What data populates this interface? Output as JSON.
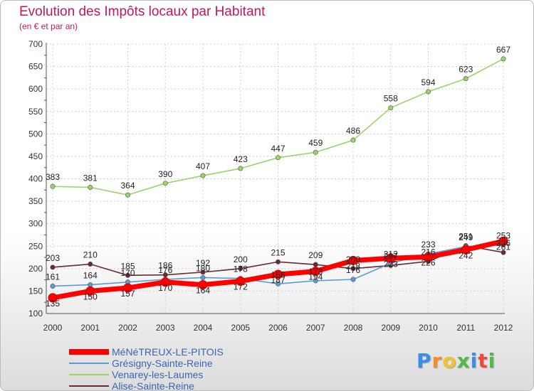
{
  "chart_data": {
    "type": "line",
    "title": "Evolution des Impôts locaux par Habitant",
    "subtitle": "(en € et par an)",
    "x": [
      "2000",
      "2001",
      "2002",
      "2003",
      "2004",
      "2005",
      "2006",
      "2007",
      "2008",
      "2009",
      "2010",
      "2011",
      "2012"
    ],
    "ylim": [
      100,
      700
    ],
    "yticks": [
      "100",
      "150",
      "200",
      "250",
      "300",
      "350",
      "400",
      "450",
      "500",
      "550",
      "600",
      "650",
      "700"
    ],
    "series": [
      {
        "name": "MéNéTREUX-LE-PITOIS",
        "color": "#ff0000",
        "values": [
          135,
          150,
          157,
          170,
          164,
          172,
          187,
          194,
          218,
          223,
          226,
          242,
          261
        ],
        "labels": [
          "135",
          "150",
          "157",
          "170",
          "164",
          "172",
          "187",
          "194",
          "218",
          "223",
          "226",
          "242",
          "261"
        ]
      },
      {
        "name": "Grésigny-Sainte-Reine",
        "color": "#5b9bd5",
        "values": [
          161,
          164,
          170,
          176,
          180,
          178,
          166,
          173,
          176,
          212,
          233,
          249,
          253
        ],
        "labels": [
          "161",
          "164",
          "170",
          "176",
          "180",
          "178",
          "166",
          "173",
          "176",
          "212",
          "233",
          "249",
          "253"
        ]
      },
      {
        "name": "Venarey-les-Laumes",
        "color": "#9ad36a",
        "values": [
          383,
          381,
          364,
          390,
          407,
          423,
          447,
          459,
          486,
          558,
          594,
          623,
          667
        ],
        "labels": [
          "383",
          "381",
          "364",
          "390",
          "407",
          "423",
          "447",
          "459",
          "486",
          "558",
          "594",
          "623",
          "667"
        ]
      },
      {
        "name": "Alise-Sainte-Reine",
        "color": "#6b2a33",
        "values": [
          203,
          210,
          185,
          186,
          192,
          200,
          215,
          209,
          200,
          207,
          216,
          251,
          236
        ],
        "labels": [
          "203",
          "210",
          "185",
          "186",
          "192",
          "200",
          "215",
          "209",
          "200",
          "207",
          "216",
          "251",
          "236"
        ]
      }
    ],
    "legend": [
      "MéNéTREUX-LE-PITOIS",
      "Grésigny-Sainte-Reine",
      "Venarey-les-Laumes",
      "Alise-Sainte-Reine"
    ]
  },
  "logo": {
    "letters": [
      "P",
      "r",
      "o",
      "x",
      "i",
      "t",
      "i"
    ],
    "colors": [
      "#3a8ee6",
      "#f28c28",
      "#f2c12e",
      "#52b848",
      "#3a8ee6",
      "#e94b3c",
      "#52b848"
    ]
  }
}
